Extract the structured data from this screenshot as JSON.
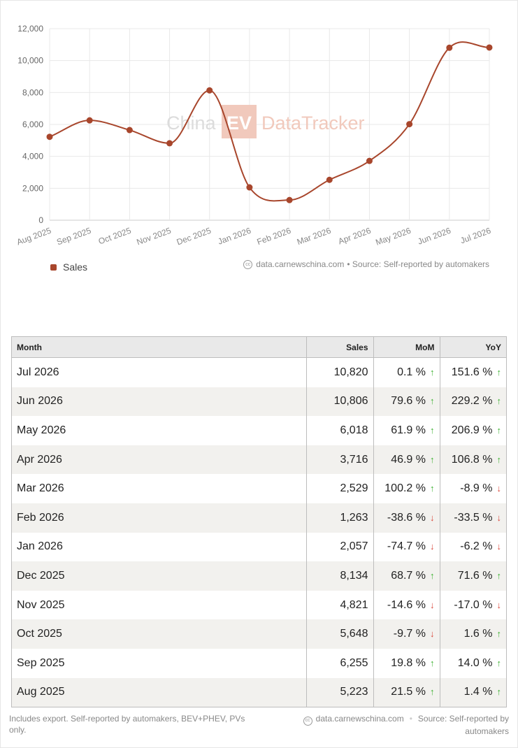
{
  "chart_data": {
    "type": "line",
    "categories": [
      "Aug 2025",
      "Sep 2025",
      "Oct 2025",
      "Nov 2025",
      "Dec 2025",
      "Jan 2026",
      "Feb 2026",
      "Mar 2026",
      "Apr 2026",
      "May 2026",
      "Jun 2026",
      "Jul 2026"
    ],
    "series": [
      {
        "name": "Sales",
        "values": [
          5223,
          6255,
          5648,
          4821,
          8134,
          2057,
          1263,
          2529,
          3716,
          6018,
          10806,
          10820
        ]
      }
    ],
    "yticks": [
      "0",
      "2,000",
      "4,000",
      "6,000",
      "8,000",
      "10,000",
      "12,000"
    ],
    "ylim": [
      0,
      12000
    ],
    "grid": true,
    "legend_position": "bottom-left",
    "watermark": {
      "china": "China",
      "ev": "EV",
      "tracker": "DataTracker"
    },
    "colors": {
      "line": "#a8462c",
      "grid": "#e8e8e8",
      "watermark_ev": "#f1c9bc"
    }
  },
  "chart_credit": {
    "site": "data.carnewschina.com",
    "source": "• Source: Self-reported by automakers"
  },
  "table": {
    "headers": {
      "month": "Month",
      "sales": "Sales",
      "mom": "MoM",
      "yoy": "YoY"
    },
    "rows": [
      {
        "month": "Jul 2026",
        "sales": "10,820",
        "mom": "0.1 %",
        "mom_dir": "up",
        "yoy": "151.6 %",
        "yoy_dir": "up"
      },
      {
        "month": "Jun 2026",
        "sales": "10,806",
        "mom": "79.6 %",
        "mom_dir": "up",
        "yoy": "229.2 %",
        "yoy_dir": "up"
      },
      {
        "month": "May 2026",
        "sales": "6,018",
        "mom": "61.9 %",
        "mom_dir": "up",
        "yoy": "206.9 %",
        "yoy_dir": "up"
      },
      {
        "month": "Apr 2026",
        "sales": "3,716",
        "mom": "46.9 %",
        "mom_dir": "up",
        "yoy": "106.8 %",
        "yoy_dir": "up"
      },
      {
        "month": "Mar 2026",
        "sales": "2,529",
        "mom": "100.2 %",
        "mom_dir": "up",
        "yoy": "-8.9 %",
        "yoy_dir": "down"
      },
      {
        "month": "Feb 2026",
        "sales": "1,263",
        "mom": "-38.6 %",
        "mom_dir": "down",
        "yoy": "-33.5 %",
        "yoy_dir": "down"
      },
      {
        "month": "Jan 2026",
        "sales": "2,057",
        "mom": "-74.7 %",
        "mom_dir": "down",
        "yoy": "-6.2 %",
        "yoy_dir": "down"
      },
      {
        "month": "Dec 2025",
        "sales": "8,134",
        "mom": "68.7 %",
        "mom_dir": "up",
        "yoy": "71.6 %",
        "yoy_dir": "up"
      },
      {
        "month": "Nov 2025",
        "sales": "4,821",
        "mom": "-14.6 %",
        "mom_dir": "down",
        "yoy": "-17.0 %",
        "yoy_dir": "down"
      },
      {
        "month": "Oct 2025",
        "sales": "5,648",
        "mom": "-9.7 %",
        "mom_dir": "down",
        "yoy": "1.6 %",
        "yoy_dir": "up"
      },
      {
        "month": "Sep 2025",
        "sales": "6,255",
        "mom": "19.8 %",
        "mom_dir": "up",
        "yoy": "14.0 %",
        "yoy_dir": "up"
      },
      {
        "month": "Aug 2025",
        "sales": "5,223",
        "mom": "21.5 %",
        "mom_dir": "up",
        "yoy": "1.4 %",
        "yoy_dir": "up"
      }
    ]
  },
  "footer": {
    "note": "Includes export. Self-reported by automakers, BEV+PHEV, PVs only.",
    "site": "data.carnewschina.com",
    "source": "Source: Self-reported by automakers"
  }
}
